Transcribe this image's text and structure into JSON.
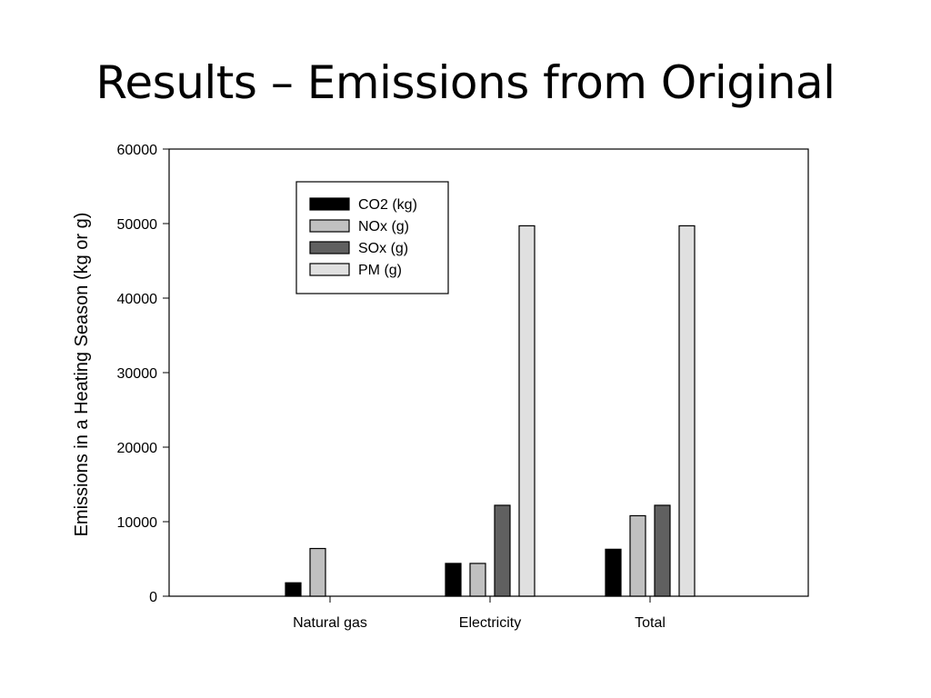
{
  "slide": {
    "title": "Results – Emissions from Original"
  },
  "chart_data": {
    "type": "bar",
    "title": "",
    "xlabel": "",
    "ylabel": "Emissions in a Heating Season (kg or g)",
    "categories": [
      "Natural gas",
      "Electricity",
      "Total"
    ],
    "ylim": [
      0,
      60000
    ],
    "yticks": [
      0,
      10000,
      20000,
      30000,
      40000,
      50000,
      60000
    ],
    "grid": false,
    "legend_position": "top-left",
    "series": [
      {
        "name": "CO2 (kg)",
        "color": "#000000",
        "values": [
          1800,
          4400,
          6300
        ]
      },
      {
        "name": "NOx (g)",
        "color": "#c0c0c0",
        "values": [
          6400,
          4400,
          10800
        ]
      },
      {
        "name": "SOx (g)",
        "color": "#606060",
        "values": [
          0,
          12200,
          12200
        ]
      },
      {
        "name": "PM (g)",
        "color": "#e0e0e0",
        "values": [
          0,
          49700,
          49700
        ]
      }
    ]
  }
}
